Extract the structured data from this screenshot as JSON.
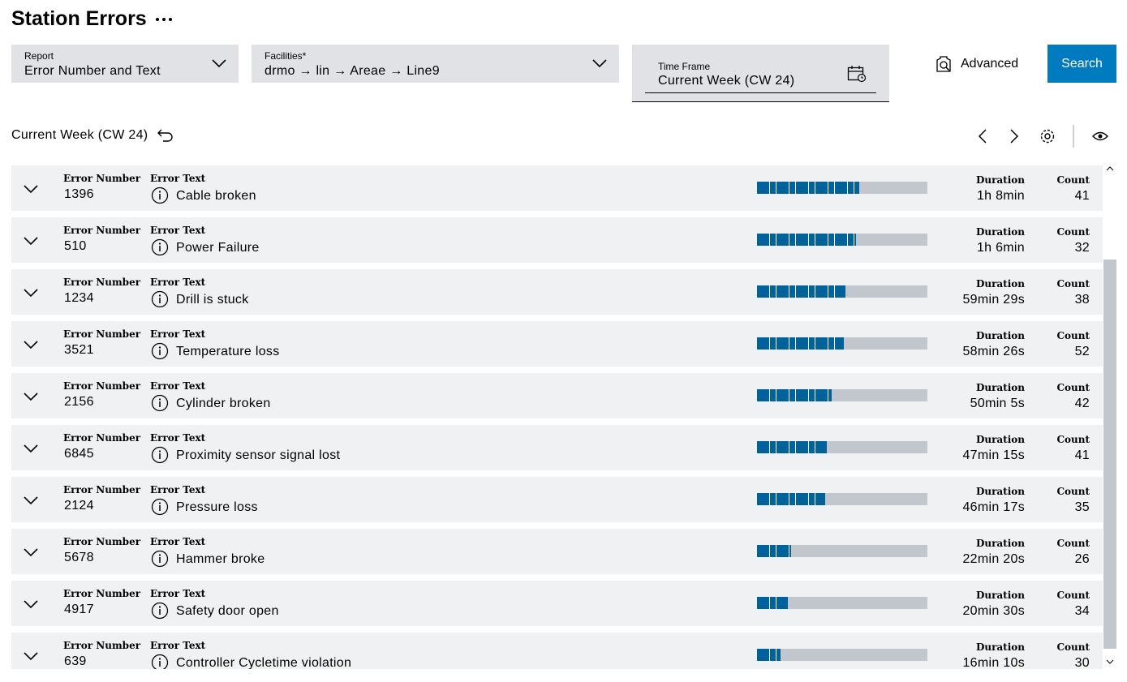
{
  "header": {
    "title": "Station Errors"
  },
  "filters": {
    "report": {
      "label": "Report",
      "value": "Error Number and Text"
    },
    "facilities": {
      "label": "Facilities*",
      "value": "drmo → lin → Areae → Line9"
    },
    "time_frame": {
      "label": "Time Frame",
      "value": "Current Week (CW 24)"
    },
    "advanced": "Advanced",
    "search": "Search"
  },
  "results": {
    "period": "Current Week (CW 24)",
    "columns": {
      "error_number": "Error Number",
      "error_text": "Error Text",
      "duration": "Duration",
      "count": "Count"
    },
    "rows": [
      {
        "error_number": 1396,
        "error_text": "Cable broken",
        "duration": "1h 8min",
        "count": 41,
        "bar_percent": 60
      },
      {
        "error_number": 510,
        "error_text": "Power Failure",
        "duration": "1h 6min",
        "count": 32,
        "bar_percent": 58
      },
      {
        "error_number": 1234,
        "error_text": "Drill is stuck",
        "duration": "59min 29s",
        "count": 38,
        "bar_percent": 52
      },
      {
        "error_number": 3521,
        "error_text": "Temperature loss",
        "duration": "58min 26s",
        "count": 52,
        "bar_percent": 51
      },
      {
        "error_number": 2156,
        "error_text": "Cylinder broken",
        "duration": "50min 5s",
        "count": 42,
        "bar_percent": 44
      },
      {
        "error_number": 6845,
        "error_text": "Proximity sensor signal lost",
        "duration": "47min 15s",
        "count": 41,
        "bar_percent": 41
      },
      {
        "error_number": 2124,
        "error_text": "Pressure loss",
        "duration": "46min 17s",
        "count": 35,
        "bar_percent": 40
      },
      {
        "error_number": 5678,
        "error_text": "Hammer broke",
        "duration": "22min 20s",
        "count": 26,
        "bar_percent": 20
      },
      {
        "error_number": 4917,
        "error_text": "Safety door open",
        "duration": "20min 30s",
        "count": 34,
        "bar_percent": 18
      },
      {
        "error_number": 639,
        "error_text": "Controller Cycletime violation",
        "duration": "16min 10s",
        "count": 30,
        "bar_percent": 14
      }
    ]
  }
}
